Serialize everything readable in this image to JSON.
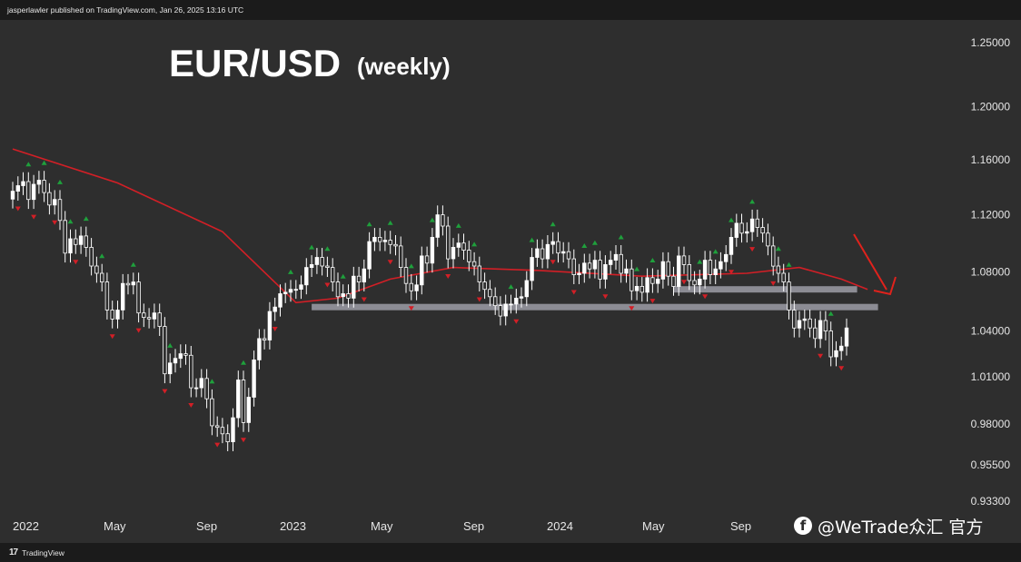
{
  "header": {
    "publisher_line": "jasperlawler published on TradingView.com, Jan 26, 2025 13:16 UTC"
  },
  "footer": {
    "brand": "TradingView",
    "logo_icon": "tradingview-logo-icon"
  },
  "watermark": {
    "text": "@WeTrade众汇 官方",
    "icon": "social-account-icon"
  },
  "colors": {
    "background": "#2e2e2e",
    "candle_up": "#ffffff",
    "candle_down": "#2e2e2e",
    "moving_average": "#d21f26",
    "support_zone": "#8c8c94",
    "fractal_up": "#1fa03c",
    "fractal_down": "#d21f26",
    "arrow": "#e0221c",
    "text": "#e6e6e6"
  },
  "chart_data": {
    "type": "candlestick",
    "title": "EUR/USD",
    "subtitle": "(weekly)",
    "y_axis": {
      "ticks": [
        "1.25000",
        "1.20000",
        "1.16000",
        "1.12000",
        "1.08000",
        "1.04000",
        "1.01000",
        "0.98000",
        "0.95500",
        "0.93300"
      ],
      "ylim": [
        0.933,
        1.25
      ],
      "scale": "log"
    },
    "x_axis": {
      "labels": [
        "2022",
        "May",
        "Sep",
        "2023",
        "May",
        "Sep",
        "2024",
        "May",
        "Sep"
      ]
    },
    "closes": [
      1.137,
      1.141,
      1.144,
      1.131,
      1.142,
      1.145,
      1.136,
      1.127,
      1.131,
      1.116,
      1.093,
      1.103,
      1.099,
      1.105,
      1.097,
      1.084,
      1.079,
      1.073,
      1.054,
      1.048,
      1.054,
      1.072,
      1.071,
      1.073,
      1.052,
      1.049,
      1.048,
      1.052,
      1.043,
      1.012,
      1.019,
      1.022,
      1.025,
      1.024,
      1.003,
      1.003,
      1.009,
      0.996,
      0.979,
      0.978,
      0.974,
      0.969,
      0.984,
      1.008,
      0.981,
      0.997,
      1.021,
      1.035,
      1.034,
      1.053,
      1.056,
      1.065,
      1.066,
      1.068,
      1.068,
      1.071,
      1.083,
      1.085,
      1.09,
      1.084,
      1.083,
      1.073,
      1.063,
      1.065,
      1.062,
      1.077,
      1.073,
      1.082,
      1.101,
      1.104,
      1.101,
      1.102,
      1.099,
      1.098,
      1.083,
      1.072,
      1.067,
      1.071,
      1.091,
      1.086,
      1.104,
      1.12,
      1.112,
      1.089,
      1.097,
      1.1,
      1.095,
      1.087,
      1.084,
      1.073,
      1.068,
      1.063,
      1.057,
      1.05,
      1.058,
      1.058,
      1.062,
      1.063,
      1.074,
      1.09,
      1.096,
      1.089,
      1.099,
      1.101,
      1.093,
      1.094,
      1.089,
      1.078,
      1.079,
      1.086,
      1.082,
      1.088,
      1.075,
      1.085,
      1.088,
      1.092,
      1.079,
      1.082,
      1.067,
      1.07,
      1.066,
      1.076,
      1.072,
      1.075,
      1.087,
      1.077,
      1.07,
      1.091,
      1.085,
      1.074,
      1.071,
      1.075,
      1.088,
      1.078,
      1.082,
      1.087,
      1.092,
      1.104,
      1.114,
      1.107,
      1.108,
      1.117,
      1.111,
      1.107,
      1.098,
      1.084,
      1.079,
      1.073,
      1.054,
      1.042,
      1.047,
      1.048,
      1.042,
      1.035,
      1.047,
      1.04,
      1.023,
      1.027,
      1.03,
      1.042
    ],
    "moving_average": {
      "name": "MA",
      "values_by_week": [
        [
          0,
          1.168
        ],
        [
          20,
          1.143
        ],
        [
          40,
          1.108
        ],
        [
          54,
          1.059
        ],
        [
          62,
          1.062
        ],
        [
          72,
          1.075
        ],
        [
          84,
          1.083
        ],
        [
          100,
          1.081
        ],
        [
          120,
          1.077
        ],
        [
          140,
          1.079
        ],
        [
          150,
          1.083
        ],
        [
          158,
          1.075
        ],
        [
          163,
          1.068
        ]
      ]
    },
    "support_zones": [
      {
        "level": 1.056,
        "from_week": 57,
        "to_week": 165
      },
      {
        "level": 1.068,
        "from_week": 126,
        "to_week": 161
      }
    ],
    "fractals_up_weeks": [
      3,
      6,
      9,
      11,
      14,
      17,
      23,
      30,
      38,
      44,
      53,
      57,
      60,
      63,
      68,
      72,
      76,
      80,
      85,
      88,
      95,
      99,
      103,
      109,
      111,
      116,
      119,
      122,
      131,
      134,
      137,
      141,
      146,
      148,
      156
    ],
    "fractals_down_weeks": [
      1,
      4,
      8,
      12,
      19,
      24,
      29,
      34,
      39,
      44,
      50,
      60,
      67,
      72,
      76,
      83,
      89,
      96,
      103,
      107,
      113,
      118,
      122,
      128,
      132,
      137,
      141,
      145,
      154,
      158,
      162
    ]
  }
}
